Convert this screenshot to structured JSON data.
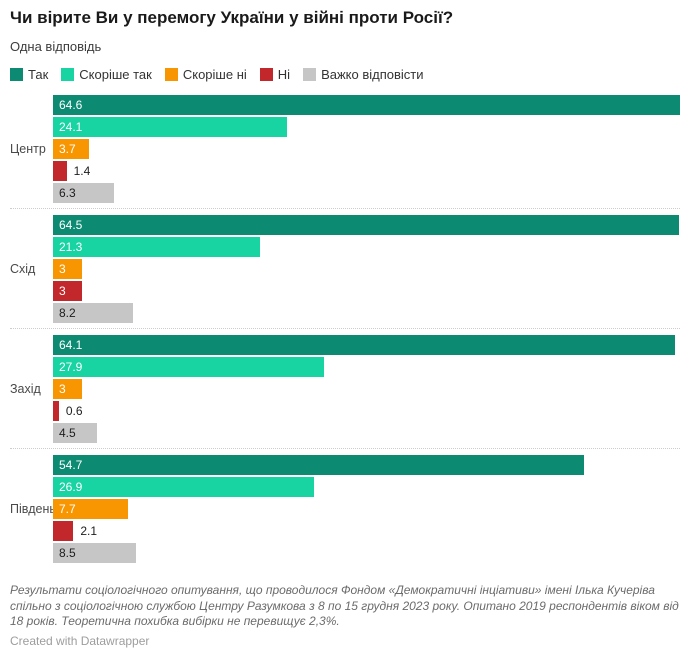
{
  "title": "Чи вірите Ви у перемогу України у війні проти Росії?",
  "subtitle": "Одна відповідь",
  "chart_data": {
    "type": "bar",
    "orientation": "horizontal",
    "grouped": true,
    "grid": false,
    "legend_position": "top",
    "value_labels_shown": true,
    "xmax": 64.6,
    "categories": [
      "Центр",
      "Схід",
      "Захід",
      "Південь"
    ],
    "series": [
      {
        "name": "Так",
        "color": "#0d8b72",
        "label_color": "#ffffff",
        "values": [
          64.6,
          64.5,
          64.1,
          54.7
        ]
      },
      {
        "name": "Скоріше так",
        "color": "#18d3a2",
        "label_color": "#ffffff",
        "values": [
          24.1,
          21.3,
          27.9,
          26.9
        ]
      },
      {
        "name": "Скоріше ні",
        "color": "#f79600",
        "label_color": "#ffffff",
        "values": [
          3.7,
          3,
          3,
          7.7
        ]
      },
      {
        "name": "Ні",
        "color": "#c2272b",
        "label_color": "#ffffff",
        "values": [
          1.4,
          3,
          0.6,
          2.1
        ]
      },
      {
        "name": "Важко відповісти",
        "color": "#c6c6c6",
        "label_color": "#1d1d1d",
        "values": [
          6.3,
          8.2,
          4.5,
          8.5
        ]
      }
    ]
  },
  "footer": {
    "notes": "Результати соціологічного опитування, що проводилося Фондом «Демократичні інціативи» імені Ілька Кучеріва спільно з соціологічною службою Центру Разумкова з 8 по 15 грудня 2023 року. Опитано 2019 респондентів віком від 18 років. Теоретична похибка вибірки не перевищує 2,3%.",
    "attribution": "Created with Datawrapper"
  }
}
